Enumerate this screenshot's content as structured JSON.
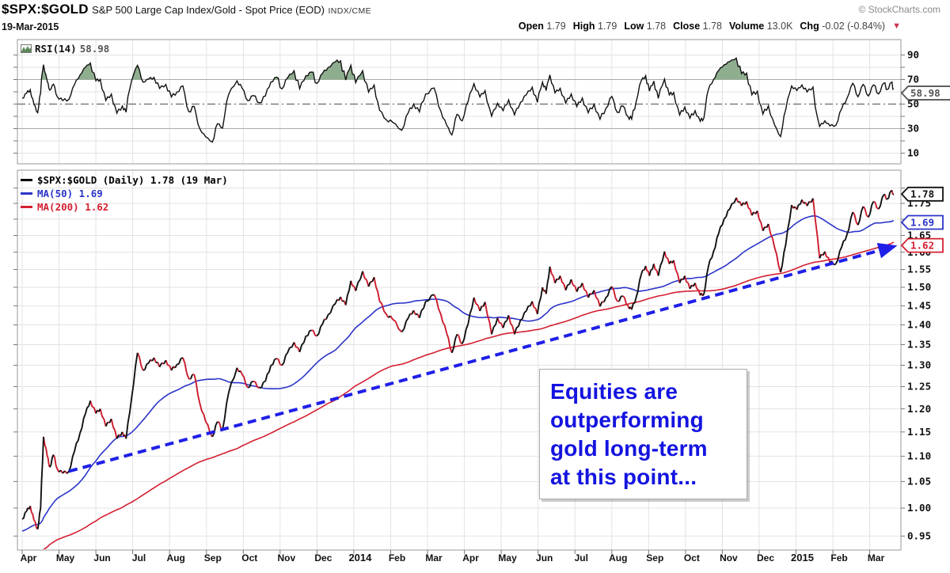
{
  "header": {
    "symbol": "$SPX:$GOLD",
    "title": "S&P 500 Large Cap Index/Gold - Spot Price (EOD)",
    "exchange": "INDX/CME",
    "credit": "© StockCharts.com",
    "date": "19-Mar-2015",
    "quote": {
      "open_label": "Open",
      "open": "1.79",
      "high_label": "High",
      "high": "1.79",
      "low_label": "Low",
      "low": "1.78",
      "close_label": "Close",
      "close": "1.78",
      "volume_label": "Volume",
      "volume": "13.0K",
      "chg_label": "Chg",
      "chg": "-0.02 (-0.84%)",
      "direction": "down"
    }
  },
  "rsi_panel": {
    "name": "RSI(14)",
    "value": "58.98"
  },
  "main_panel": {
    "legend": [
      {
        "label": "$SPX:$GOLD (Daily) 1.78 (19 Mar)",
        "color": "#000000"
      },
      {
        "label": "MA(50) 1.69",
        "color": "#2b35c8"
      },
      {
        "label": "MA(200) 1.62",
        "color": "#d42031"
      }
    ]
  },
  "annotation": {
    "lines": [
      "Equities are",
      "outperforming",
      "gold long-term",
      "at this point..."
    ]
  },
  "chart_data": {
    "type": "line",
    "title": "$SPX:$GOLD (Daily) with MA(50), MA(200) and RSI(14)",
    "x_unit": "months since 2013-04-01",
    "y_scale": "log",
    "ylim": [
      0.93,
      1.84
    ],
    "rsi_ylim": [
      0,
      100
    ],
    "rsi_levels_solid": [
      70,
      30
    ],
    "rsi_level_dashdot": 50,
    "rsi_overbought_fill_above": 70,
    "rsi_period": 14,
    "rsi_last": "58.98",
    "ma_periods": [
      50,
      200
    ],
    "last_close": "1.78",
    "ma50_last": "1.69",
    "ma200_last": "1.62",
    "x_axis_labels": [
      "Apr",
      "May",
      "Jun",
      "Jul",
      "Aug",
      "Sep",
      "Oct",
      "Nov",
      "Dec",
      "2014",
      "Feb",
      "Mar",
      "Apr",
      "May",
      "Jun",
      "Jul",
      "Aug",
      "Sep",
      "Oct",
      "Nov",
      "Dec",
      "2015",
      "Feb",
      "Mar"
    ],
    "x_axis_bold": [
      "2014",
      "2015"
    ],
    "y_axis_ticks_main": [
      1.75,
      1.65,
      1.6,
      1.55,
      1.5,
      1.45,
      1.4,
      1.35,
      1.3,
      1.25,
      1.2,
      1.15,
      1.1,
      1.05,
      1.0,
      0.95
    ],
    "y_axis_ticks_rsi": [
      90,
      70,
      50,
      30,
      10
    ],
    "value_flags": [
      {
        "text": "1.78",
        "panel": "main",
        "value": 1.78,
        "color": "#111111"
      },
      {
        "text": "1.69",
        "panel": "main",
        "value": 1.69,
        "color": "#2b35c8"
      },
      {
        "text": "1.62",
        "panel": "main",
        "value": 1.62,
        "color": "#d42031"
      },
      {
        "text": "58.98",
        "panel": "rsi",
        "value": 58.98,
        "color": "#555555"
      }
    ],
    "trendline": {
      "from": [
        1.27,
        1.07
      ],
      "to": [
        23.5,
        1.612
      ],
      "style": "dashed",
      "arrow": true,
      "color": "#1f1fe8"
    },
    "price_waypoints": [
      [
        0.0,
        0.98
      ],
      [
        0.12,
        0.994
      ],
      [
        0.22,
        1.004
      ],
      [
        0.32,
        0.978
      ],
      [
        0.42,
        0.962
      ],
      [
        0.5,
        1.0
      ],
      [
        0.58,
        1.14
      ],
      [
        0.68,
        1.1
      ],
      [
        0.75,
        1.078
      ],
      [
        0.85,
        1.103
      ],
      [
        0.95,
        1.075
      ],
      [
        1.1,
        1.066
      ],
      [
        1.27,
        1.07
      ],
      [
        1.42,
        1.11
      ],
      [
        1.57,
        1.148
      ],
      [
        1.72,
        1.19
      ],
      [
        1.85,
        1.218
      ],
      [
        2.0,
        1.19
      ],
      [
        2.12,
        1.2
      ],
      [
        2.27,
        1.162
      ],
      [
        2.42,
        1.178
      ],
      [
        2.57,
        1.136
      ],
      [
        2.72,
        1.15
      ],
      [
        2.82,
        1.136
      ],
      [
        2.97,
        1.225
      ],
      [
        3.13,
        1.33
      ],
      [
        3.28,
        1.288
      ],
      [
        3.43,
        1.305
      ],
      [
        3.58,
        1.318
      ],
      [
        3.73,
        1.296
      ],
      [
        3.9,
        1.312
      ],
      [
        4.05,
        1.288
      ],
      [
        4.2,
        1.302
      ],
      [
        4.36,
        1.318
      ],
      [
        4.52,
        1.268
      ],
      [
        4.67,
        1.278
      ],
      [
        4.82,
        1.212
      ],
      [
        4.98,
        1.172
      ],
      [
        5.16,
        1.14
      ],
      [
        5.3,
        1.172
      ],
      [
        5.44,
        1.156
      ],
      [
        5.6,
        1.235
      ],
      [
        5.83,
        1.294
      ],
      [
        5.97,
        1.278
      ],
      [
        6.12,
        1.248
      ],
      [
        6.27,
        1.262
      ],
      [
        6.44,
        1.247
      ],
      [
        6.6,
        1.262
      ],
      [
        6.75,
        1.3
      ],
      [
        6.9,
        1.316
      ],
      [
        7.05,
        1.3
      ],
      [
        7.2,
        1.33
      ],
      [
        7.38,
        1.356
      ],
      [
        7.53,
        1.332
      ],
      [
        7.7,
        1.372
      ],
      [
        7.85,
        1.386
      ],
      [
        8.0,
        1.372
      ],
      [
        8.15,
        1.402
      ],
      [
        8.3,
        1.426
      ],
      [
        8.5,
        1.456
      ],
      [
        8.64,
        1.474
      ],
      [
        8.78,
        1.452
      ],
      [
        8.92,
        1.518
      ],
      [
        9.05,
        1.49
      ],
      [
        9.24,
        1.545
      ],
      [
        9.4,
        1.502
      ],
      [
        9.55,
        1.528
      ],
      [
        9.7,
        1.462
      ],
      [
        9.88,
        1.428
      ],
      [
        10.05,
        1.415
      ],
      [
        10.3,
        1.382
      ],
      [
        10.48,
        1.418
      ],
      [
        10.62,
        1.438
      ],
      [
        10.78,
        1.418
      ],
      [
        10.95,
        1.462
      ],
      [
        11.18,
        1.48
      ],
      [
        11.36,
        1.428
      ],
      [
        11.52,
        1.378
      ],
      [
        11.66,
        1.33
      ],
      [
        11.8,
        1.376
      ],
      [
        11.94,
        1.352
      ],
      [
        12.1,
        1.402
      ],
      [
        12.26,
        1.472
      ],
      [
        12.42,
        1.436
      ],
      [
        12.56,
        1.46
      ],
      [
        12.74,
        1.376
      ],
      [
        12.9,
        1.418
      ],
      [
        13.05,
        1.392
      ],
      [
        13.2,
        1.425
      ],
      [
        13.36,
        1.376
      ],
      [
        13.52,
        1.412
      ],
      [
        13.68,
        1.436
      ],
      [
        13.84,
        1.462
      ],
      [
        13.98,
        1.428
      ],
      [
        14.12,
        1.5
      ],
      [
        14.22,
        1.482
      ],
      [
        14.32,
        1.558
      ],
      [
        14.46,
        1.512
      ],
      [
        14.6,
        1.532
      ],
      [
        14.75,
        1.492
      ],
      [
        14.9,
        1.522
      ],
      [
        15.05,
        1.488
      ],
      [
        15.2,
        1.512
      ],
      [
        15.36,
        1.472
      ],
      [
        15.52,
        1.492
      ],
      [
        15.68,
        1.448
      ],
      [
        15.84,
        1.472
      ],
      [
        16.0,
        1.502
      ],
      [
        16.15,
        1.462
      ],
      [
        16.3,
        1.476
      ],
      [
        16.44,
        1.45
      ],
      [
        16.54,
        1.44
      ],
      [
        16.66,
        1.472
      ],
      [
        16.8,
        1.536
      ],
      [
        16.92,
        1.56
      ],
      [
        17.02,
        1.532
      ],
      [
        17.14,
        1.566
      ],
      [
        17.26,
        1.532
      ],
      [
        17.43,
        1.602
      ],
      [
        17.56,
        1.566
      ],
      [
        17.68,
        1.576
      ],
      [
        17.84,
        1.512
      ],
      [
        17.98,
        1.532
      ],
      [
        18.12,
        1.496
      ],
      [
        18.26,
        1.512
      ],
      [
        18.4,
        1.478
      ],
      [
        18.5,
        1.482
      ],
      [
        18.62,
        1.558
      ],
      [
        18.76,
        1.602
      ],
      [
        18.9,
        1.656
      ],
      [
        19.05,
        1.702
      ],
      [
        19.2,
        1.732
      ],
      [
        19.38,
        1.768
      ],
      [
        19.52,
        1.742
      ],
      [
        19.66,
        1.756
      ],
      [
        19.8,
        1.712
      ],
      [
        19.95,
        1.726
      ],
      [
        20.1,
        1.664
      ],
      [
        20.25,
        1.685
      ],
      [
        20.42,
        1.612
      ],
      [
        20.58,
        1.542
      ],
      [
        20.72,
        1.622
      ],
      [
        20.88,
        1.745
      ],
      [
        21.02,
        1.73
      ],
      [
        21.16,
        1.762
      ],
      [
        21.3,
        1.742
      ],
      [
        21.46,
        1.766
      ],
      [
        21.64,
        1.582
      ],
      [
        21.78,
        1.602
      ],
      [
        21.92,
        1.57
      ],
      [
        22.08,
        1.566
      ],
      [
        22.24,
        1.616
      ],
      [
        22.38,
        1.652
      ],
      [
        22.54,
        1.722
      ],
      [
        22.68,
        1.682
      ],
      [
        22.82,
        1.74
      ],
      [
        22.96,
        1.706
      ],
      [
        23.1,
        1.756
      ],
      [
        23.24,
        1.732
      ],
      [
        23.38,
        1.778
      ],
      [
        23.48,
        1.764
      ],
      [
        23.58,
        1.79
      ],
      [
        23.65,
        1.78
      ]
    ],
    "colors": {
      "price_up": "#111111",
      "price_down": "#cc1b2b",
      "ma50": "#2b35c8",
      "ma200": "#d42031",
      "trend": "#1f1fe8",
      "rsi_line": "#111111",
      "rsi_fill": "#8fae8f",
      "grid": "#e3e3e3",
      "panel_border": "#999999",
      "rsi_band": "#aaaaaa",
      "rsi_mid": "#666666",
      "annotation_text": "#1414e0"
    }
  }
}
